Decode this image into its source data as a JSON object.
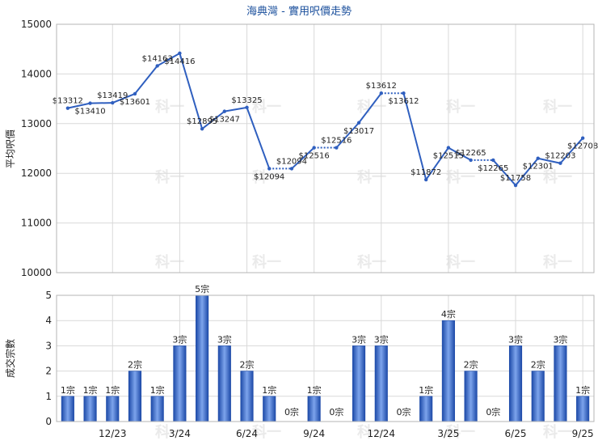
{
  "chart_data": [
    {
      "type": "line",
      "title": "海典灣 - 實用呎價走勢",
      "ylabel": "平均呎價",
      "ylim": [
        10000,
        15000
      ],
      "yticks": [
        "10000",
        "11000",
        "12000",
        "13000",
        "14000",
        "15000"
      ],
      "grid": true,
      "legend": "none",
      "color": "#2f5fbf",
      "series": [
        {
          "values": [
            13312,
            13410,
            13419,
            13601,
            14163,
            14416,
            12895,
            13247,
            13325,
            12094,
            12094,
            12516,
            12516,
            13017,
            13612,
            13612,
            11872,
            12515,
            12265,
            12265,
            11758,
            12301,
            12203,
            12708
          ],
          "labels": [
            "$13312",
            "$13410",
            "$13419",
            "$13601",
            "$14163",
            "$14416",
            "$12895",
            "$13247",
            "$13325",
            "$12094",
            "$12094",
            "$12516",
            "$12516",
            "$13017",
            "$13612",
            "$13612",
            "$11872",
            "$12515",
            "$12265",
            "$12265",
            "$11758",
            "$12301",
            "$12203",
            "$12708"
          ],
          "imputed": [
            false,
            false,
            false,
            false,
            false,
            false,
            false,
            false,
            false,
            false,
            true,
            false,
            true,
            false,
            false,
            true,
            false,
            false,
            false,
            true,
            false,
            false,
            false,
            false
          ]
        }
      ]
    },
    {
      "type": "bar",
      "ylabel": "成交宗數",
      "ylim": [
        0,
        5
      ],
      "yticks": [
        "0",
        "1",
        "2",
        "3",
        "4",
        "5"
      ],
      "grid": true,
      "color": "#2f5fbf",
      "values": [
        1,
        1,
        1,
        2,
        1,
        3,
        5,
        3,
        2,
        1,
        0,
        1,
        0,
        3,
        3,
        0,
        1,
        4,
        2,
        0,
        3,
        2,
        3,
        1
      ],
      "labels": [
        "1宗",
        "1宗",
        "1宗",
        "2宗",
        "1宗",
        "3宗",
        "5宗",
        "3宗",
        "2宗",
        "1宗",
        "0宗",
        "1宗",
        "0宗",
        "3宗",
        "3宗",
        "0宗",
        "1宗",
        "4宗",
        "2宗",
        "0宗",
        "3宗",
        "2宗",
        "3宗",
        "1宗"
      ],
      "xticks": [
        "12/23",
        "3/24",
        "6/24",
        "9/24",
        "12/24",
        "3/25",
        "6/25",
        "9/25"
      ]
    }
  ],
  "watermark": "科一"
}
